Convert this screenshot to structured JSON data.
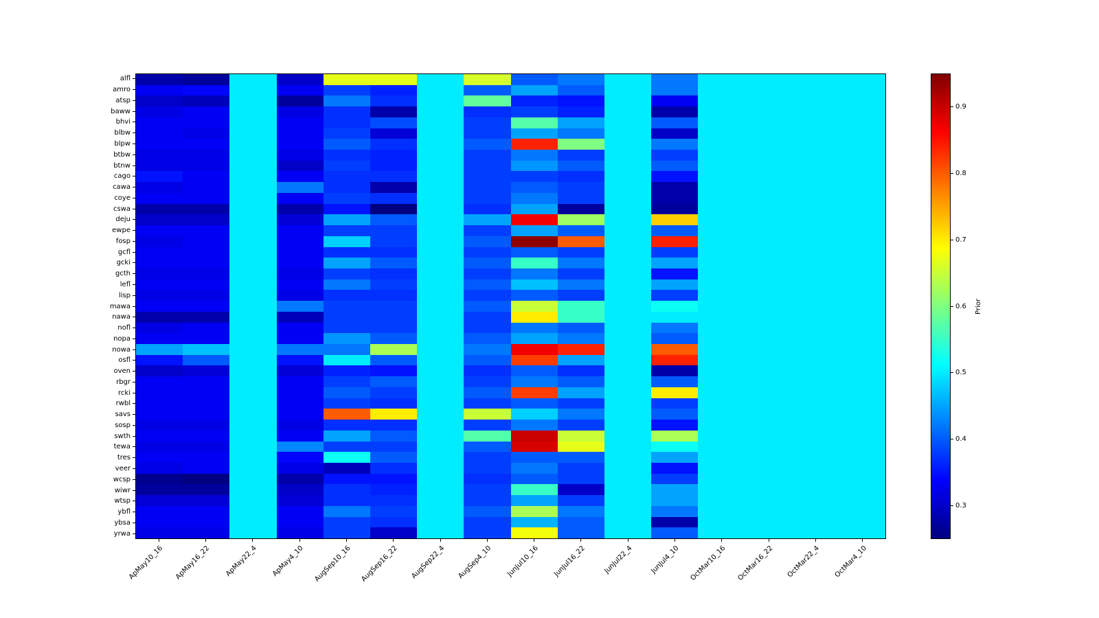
{
  "figure": {
    "background": "#ffffff"
  },
  "chart_data": {
    "type": "heatmap",
    "title": "",
    "xlabel": "",
    "ylabel": "",
    "colorbar_label": "Prior",
    "colormap": "jet",
    "vmin": 0.25,
    "vmax": 0.95,
    "grid": false,
    "legend_position": "colorbar-right",
    "colorbar_ticks": [
      0.3,
      0.4,
      0.5,
      0.6,
      0.7,
      0.8,
      0.9
    ],
    "columns": [
      "ApMay10_16",
      "ApMay16_22",
      "ApMay22_4",
      "ApMay4_10",
      "AugSep10_16",
      "AugSep16_22",
      "AugSep22_4",
      "AugSep4_10",
      "JunJul10_16",
      "JunJul16_22",
      "JunJul22_4",
      "JunJul4_10",
      "OctMar10_16",
      "OctMar16_22",
      "OctMar22_4",
      "OctMar4_10"
    ],
    "rows": [
      "alfl",
      "amro",
      "atsp",
      "baww",
      "bhvi",
      "blbw",
      "blpw",
      "btbw",
      "btnw",
      "cago",
      "cawa",
      "coye",
      "cswa",
      "deju",
      "ewpe",
      "fosp",
      "gcfl",
      "gcki",
      "gcth",
      "lefl",
      "lisp",
      "mawa",
      "nawa",
      "nofl",
      "nopa",
      "nowa",
      "osfl",
      "oven",
      "rbgr",
      "rcki",
      "rwbl",
      "savs",
      "sosp",
      "swth",
      "tewa",
      "tres",
      "veer",
      "wcsp",
      "wiwr",
      "wtsp",
      "ybfl",
      "ybsa",
      "yrwa"
    ],
    "values": [
      [
        0.28,
        0.27,
        0.5,
        0.3,
        0.67,
        0.67,
        0.5,
        0.66,
        0.4,
        0.42,
        0.5,
        0.42,
        0.5,
        0.5,
        0.5,
        0.5
      ],
      [
        0.33,
        0.34,
        0.5,
        0.33,
        0.38,
        0.36,
        0.5,
        0.4,
        0.45,
        0.4,
        0.5,
        0.42,
        0.5,
        0.5,
        0.5,
        0.5
      ],
      [
        0.3,
        0.29,
        0.5,
        0.27,
        0.42,
        0.37,
        0.5,
        0.58,
        0.36,
        0.35,
        0.5,
        0.33,
        0.5,
        0.5,
        0.5,
        0.5
      ],
      [
        0.32,
        0.33,
        0.5,
        0.32,
        0.37,
        0.28,
        0.5,
        0.37,
        0.38,
        0.36,
        0.5,
        0.28,
        0.5,
        0.5,
        0.5,
        0.5
      ],
      [
        0.33,
        0.33,
        0.5,
        0.33,
        0.37,
        0.39,
        0.5,
        0.38,
        0.57,
        0.45,
        0.5,
        0.4,
        0.5,
        0.5,
        0.5,
        0.5
      ],
      [
        0.33,
        0.32,
        0.5,
        0.33,
        0.38,
        0.31,
        0.5,
        0.38,
        0.45,
        0.42,
        0.5,
        0.3,
        0.5,
        0.5,
        0.5,
        0.5
      ],
      [
        0.33,
        0.33,
        0.5,
        0.33,
        0.4,
        0.37,
        0.5,
        0.4,
        0.84,
        0.6,
        0.5,
        0.42,
        0.5,
        0.5,
        0.5,
        0.5
      ],
      [
        0.32,
        0.32,
        0.5,
        0.32,
        0.37,
        0.36,
        0.5,
        0.38,
        0.42,
        0.38,
        0.5,
        0.38,
        0.5,
        0.5,
        0.5,
        0.5
      ],
      [
        0.32,
        0.32,
        0.5,
        0.3,
        0.38,
        0.36,
        0.5,
        0.38,
        0.44,
        0.4,
        0.5,
        0.4,
        0.5,
        0.5,
        0.5,
        0.5
      ],
      [
        0.35,
        0.33,
        0.5,
        0.33,
        0.37,
        0.37,
        0.5,
        0.38,
        0.38,
        0.37,
        0.5,
        0.35,
        0.5,
        0.5,
        0.5,
        0.5
      ],
      [
        0.32,
        0.33,
        0.5,
        0.42,
        0.37,
        0.28,
        0.5,
        0.38,
        0.4,
        0.38,
        0.5,
        0.28,
        0.5,
        0.5,
        0.5,
        0.5
      ],
      [
        0.33,
        0.33,
        0.5,
        0.33,
        0.38,
        0.37,
        0.5,
        0.38,
        0.42,
        0.38,
        0.5,
        0.28,
        0.5,
        0.5,
        0.5,
        0.5
      ],
      [
        0.28,
        0.28,
        0.5,
        0.28,
        0.35,
        0.25,
        0.5,
        0.37,
        0.45,
        0.27,
        0.5,
        0.27,
        0.5,
        0.5,
        0.5,
        0.5
      ],
      [
        0.3,
        0.3,
        0.5,
        0.31,
        0.45,
        0.4,
        0.5,
        0.45,
        0.87,
        0.62,
        0.5,
        0.72,
        0.5,
        0.5,
        0.5,
        0.5
      ],
      [
        0.33,
        0.33,
        0.5,
        0.33,
        0.38,
        0.38,
        0.5,
        0.38,
        0.45,
        0.4,
        0.5,
        0.4,
        0.5,
        0.5,
        0.5,
        0.5
      ],
      [
        0.32,
        0.33,
        0.5,
        0.33,
        0.48,
        0.38,
        0.5,
        0.4,
        0.94,
        0.8,
        0.5,
        0.84,
        0.5,
        0.5,
        0.5,
        0.5
      ],
      [
        0.33,
        0.33,
        0.5,
        0.33,
        0.37,
        0.37,
        0.5,
        0.38,
        0.4,
        0.38,
        0.5,
        0.38,
        0.5,
        0.5,
        0.5,
        0.5
      ],
      [
        0.33,
        0.33,
        0.5,
        0.33,
        0.45,
        0.4,
        0.5,
        0.4,
        0.55,
        0.42,
        0.5,
        0.45,
        0.5,
        0.5,
        0.5,
        0.5
      ],
      [
        0.32,
        0.32,
        0.5,
        0.32,
        0.38,
        0.37,
        0.5,
        0.38,
        0.42,
        0.38,
        0.5,
        0.35,
        0.5,
        0.5,
        0.5,
        0.5
      ],
      [
        0.33,
        0.33,
        0.5,
        0.33,
        0.42,
        0.38,
        0.5,
        0.4,
        0.47,
        0.42,
        0.5,
        0.45,
        0.5,
        0.5,
        0.5,
        0.5
      ],
      [
        0.32,
        0.32,
        0.5,
        0.32,
        0.37,
        0.37,
        0.5,
        0.38,
        0.4,
        0.38,
        0.5,
        0.38,
        0.5,
        0.5,
        0.5,
        0.5
      ],
      [
        0.33,
        0.33,
        0.5,
        0.42,
        0.38,
        0.38,
        0.5,
        0.4,
        0.65,
        0.55,
        0.5,
        0.52,
        0.5,
        0.5,
        0.5,
        0.5
      ],
      [
        0.28,
        0.28,
        0.5,
        0.29,
        0.38,
        0.38,
        0.5,
        0.38,
        0.7,
        0.55,
        0.5,
        0.5,
        0.5,
        0.5,
        0.5,
        0.5
      ],
      [
        0.32,
        0.33,
        0.5,
        0.33,
        0.38,
        0.38,
        0.5,
        0.38,
        0.42,
        0.4,
        0.5,
        0.42,
        0.5,
        0.5,
        0.5,
        0.5
      ],
      [
        0.33,
        0.33,
        0.5,
        0.33,
        0.44,
        0.4,
        0.5,
        0.4,
        0.45,
        0.42,
        0.5,
        0.4,
        0.5,
        0.5,
        0.5,
        0.5
      ],
      [
        0.45,
        0.47,
        0.5,
        0.42,
        0.42,
        0.63,
        0.5,
        0.42,
        0.87,
        0.84,
        0.5,
        0.8,
        0.5,
        0.5,
        0.5,
        0.5
      ],
      [
        0.35,
        0.4,
        0.5,
        0.35,
        0.5,
        0.4,
        0.5,
        0.4,
        0.82,
        0.45,
        0.5,
        0.84,
        0.5,
        0.5,
        0.5,
        0.5
      ],
      [
        0.3,
        0.31,
        0.5,
        0.31,
        0.36,
        0.35,
        0.5,
        0.37,
        0.4,
        0.37,
        0.5,
        0.28,
        0.5,
        0.5,
        0.5,
        0.5
      ],
      [
        0.33,
        0.33,
        0.5,
        0.33,
        0.38,
        0.4,
        0.5,
        0.38,
        0.42,
        0.4,
        0.5,
        0.4,
        0.5,
        0.5,
        0.5,
        0.5
      ],
      [
        0.33,
        0.33,
        0.5,
        0.33,
        0.4,
        0.38,
        0.5,
        0.4,
        0.82,
        0.45,
        0.5,
        0.7,
        0.5,
        0.5,
        0.5,
        0.5
      ],
      [
        0.33,
        0.33,
        0.5,
        0.33,
        0.38,
        0.37,
        0.5,
        0.38,
        0.4,
        0.38,
        0.5,
        0.38,
        0.5,
        0.5,
        0.5,
        0.5
      ],
      [
        0.33,
        0.33,
        0.5,
        0.33,
        0.8,
        0.7,
        0.5,
        0.65,
        0.48,
        0.42,
        0.5,
        0.4,
        0.5,
        0.5,
        0.5,
        0.5
      ],
      [
        0.32,
        0.32,
        0.5,
        0.32,
        0.37,
        0.37,
        0.5,
        0.38,
        0.42,
        0.38,
        0.5,
        0.35,
        0.5,
        0.5,
        0.5,
        0.5
      ],
      [
        0.33,
        0.33,
        0.5,
        0.33,
        0.45,
        0.4,
        0.5,
        0.57,
        0.9,
        0.65,
        0.5,
        0.63,
        0.5,
        0.5,
        0.5,
        0.5
      ],
      [
        0.32,
        0.32,
        0.5,
        0.43,
        0.38,
        0.38,
        0.5,
        0.4,
        0.89,
        0.67,
        0.5,
        0.52,
        0.5,
        0.5,
        0.5,
        0.5
      ],
      [
        0.33,
        0.33,
        0.5,
        0.34,
        0.52,
        0.4,
        0.5,
        0.38,
        0.4,
        0.4,
        0.5,
        0.45,
        0.5,
        0.5,
        0.5,
        0.5
      ],
      [
        0.32,
        0.33,
        0.5,
        0.32,
        0.29,
        0.37,
        0.5,
        0.38,
        0.42,
        0.38,
        0.5,
        0.35,
        0.5,
        0.5,
        0.5,
        0.5
      ],
      [
        0.26,
        0.25,
        0.5,
        0.28,
        0.35,
        0.35,
        0.5,
        0.37,
        0.4,
        0.38,
        0.5,
        0.38,
        0.5,
        0.5,
        0.5,
        0.5
      ],
      [
        0.27,
        0.27,
        0.5,
        0.3,
        0.37,
        0.36,
        0.5,
        0.38,
        0.55,
        0.3,
        0.5,
        0.45,
        0.5,
        0.5,
        0.5,
        0.5
      ],
      [
        0.31,
        0.31,
        0.5,
        0.31,
        0.37,
        0.37,
        0.5,
        0.38,
        0.45,
        0.38,
        0.5,
        0.45,
        0.5,
        0.5,
        0.5,
        0.5
      ],
      [
        0.33,
        0.33,
        0.5,
        0.33,
        0.42,
        0.38,
        0.5,
        0.4,
        0.63,
        0.42,
        0.5,
        0.42,
        0.5,
        0.5,
        0.5,
        0.5
      ],
      [
        0.33,
        0.33,
        0.5,
        0.33,
        0.38,
        0.37,
        0.5,
        0.38,
        0.46,
        0.4,
        0.5,
        0.28,
        0.5,
        0.5,
        0.5,
        0.5
      ],
      [
        0.32,
        0.32,
        0.5,
        0.32,
        0.38,
        0.3,
        0.5,
        0.38,
        0.68,
        0.4,
        0.5,
        0.4,
        0.5,
        0.5,
        0.5,
        0.5
      ]
    ]
  }
}
